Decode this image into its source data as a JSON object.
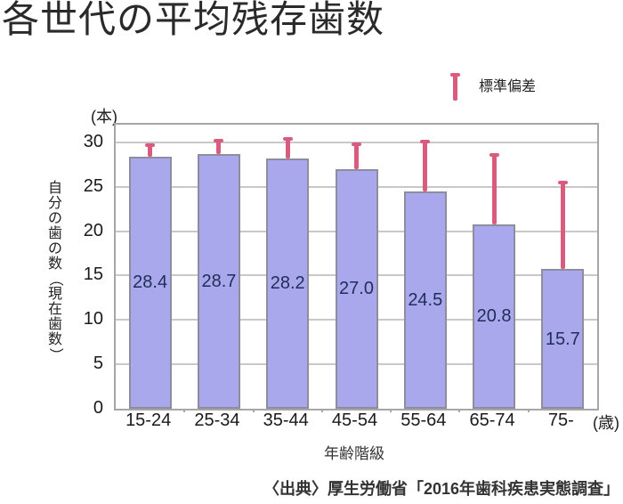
{
  "title": "各世代の平均残存歯数",
  "legend": {
    "label": "標準偏差"
  },
  "source": "〈出典〉厚生労働省「2016年歯科疾患実態調査」",
  "chart_data": {
    "type": "bar",
    "title": "各世代の平均残存歯数",
    "categories": [
      "15-24",
      "25-34",
      "35-44",
      "45-54",
      "55-64",
      "65-74",
      "75-"
    ],
    "values": [
      28.4,
      28.7,
      28.2,
      27.0,
      24.5,
      20.8,
      15.7
    ],
    "stdev": [
      1.5,
      1.7,
      2.4,
      3.0,
      5.8,
      8.0,
      10.0
    ],
    "value_labels": [
      "28.4",
      "28.7",
      "28.2",
      "27.0",
      "24.5",
      "20.8",
      "15.7"
    ],
    "xlabel": "年齢階級",
    "ylabel": "自分の歯の数（現在歯数）",
    "unit_y": "(本)",
    "unit_x": "(歳)",
    "yticks": [
      0,
      5,
      10,
      15,
      20,
      25,
      30
    ],
    "ylim": [
      0,
      32
    ],
    "grid": true,
    "legend_entries": [
      {
        "label": "標準偏差",
        "type": "error-bar"
      }
    ],
    "legend_position": "top-right",
    "colors": {
      "bar_fill": "#aaa8ec",
      "bar_border": "#8d8d9f",
      "error_bar": "#d95c7e",
      "gridline": "#c8c8c8",
      "plot_border": "#a6a6a6",
      "value_label": "#1f2d58"
    }
  }
}
